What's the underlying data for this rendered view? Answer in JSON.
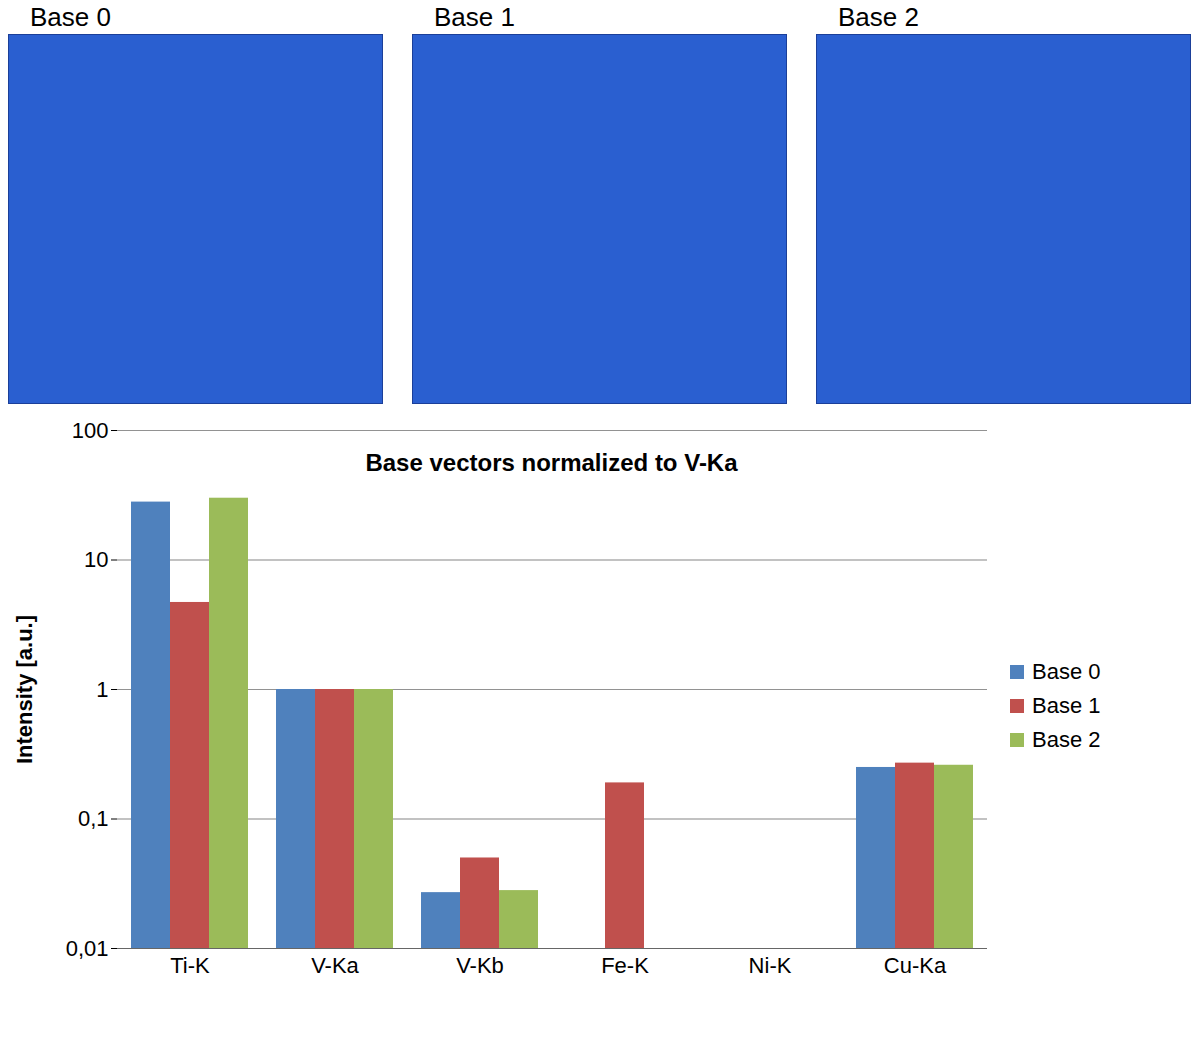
{
  "panels": [
    {
      "title": "Base 0"
    },
    {
      "title": "Base 1"
    },
    {
      "title": "Base 2"
    }
  ],
  "chart_data": {
    "type": "bar",
    "title": "Base vectors normalized to V-Ka",
    "y_label": "Intensity [a.u.]",
    "categories": [
      "Ti-K",
      "V-Ka",
      "V-Kb",
      "Fe-K",
      "Ni-K",
      "Cu-Ka"
    ],
    "series": [
      {
        "name": "Base 0",
        "color": "#4f81bd",
        "values": [
          28,
          1,
          0.027,
          0.01,
          0.01,
          0.25
        ]
      },
      {
        "name": "Base 1",
        "color": "#c0504d",
        "values": [
          4.7,
          1,
          0.05,
          0.19,
          0.01,
          0.27
        ]
      },
      {
        "name": "Base 2",
        "color": "#9bbb59",
        "values": [
          30,
          1,
          0.028,
          0.01,
          0.01,
          0.26
        ]
      }
    ],
    "log": "y",
    "ylim": [
      0.01,
      100
    ],
    "yticks": [
      {
        "value": 0.01,
        "label": "0,01"
      },
      {
        "value": 0.1,
        "label": "0,1"
      },
      1,
      10,
      100
    ],
    "grid": true,
    "legend": "right"
  }
}
